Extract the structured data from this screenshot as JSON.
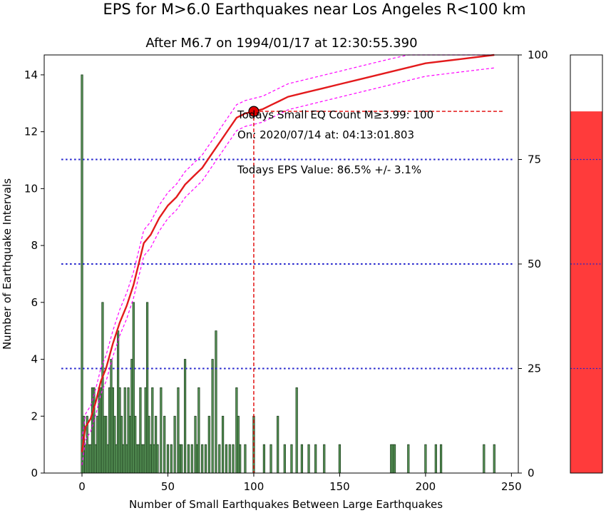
{
  "chart_data": {
    "type": "bar",
    "title": "EPS for M>6.0 Earthquakes near Los Angeles R<100 km",
    "subtitle": "After M6.7 on 1994/01/17 at 12:30:55.390",
    "xlabel": "Number of Small Earthquakes Between Large Earthquakes",
    "ylabel": "Number of Earthquake Intervals",
    "xlim": [
      -22,
      254
    ],
    "ylim": [
      0,
      14.7
    ],
    "y2lim": [
      0,
      100
    ],
    "xticks": [
      0,
      50,
      100,
      150,
      200,
      250
    ],
    "yticks": [
      0,
      2,
      4,
      6,
      8,
      10,
      12,
      14
    ],
    "y2ticks": [
      0,
      25,
      50,
      75,
      100
    ],
    "grid_levels_percent": [
      25,
      50,
      75
    ],
    "grid": false,
    "legend": "none",
    "histogram": {
      "bin_width": 1,
      "x": [
        0,
        1,
        2,
        3,
        4,
        5,
        6,
        7,
        8,
        9,
        10,
        11,
        12,
        13,
        14,
        15,
        16,
        17,
        18,
        19,
        20,
        21,
        22,
        23,
        24,
        25,
        26,
        27,
        28,
        29,
        30,
        31,
        32,
        33,
        34,
        35,
        36,
        37,
        38,
        39,
        40,
        41,
        42,
        43,
        44,
        46,
        48,
        50,
        52,
        54,
        56,
        57,
        58,
        60,
        62,
        64,
        66,
        67,
        68,
        70,
        72,
        74,
        76,
        78,
        80,
        82,
        84,
        86,
        88,
        90,
        91,
        92,
        95,
        100,
        106,
        110,
        114,
        118,
        122,
        125,
        128,
        132,
        136,
        141,
        150,
        180,
        181,
        182,
        190,
        200,
        206,
        209,
        234,
        240
      ],
      "values": [
        14,
        2,
        1,
        2,
        1,
        1,
        3,
        3,
        1,
        2,
        3,
        3,
        6,
        2,
        2,
        1,
        3,
        4,
        3,
        2,
        1,
        5,
        3,
        2,
        1,
        3,
        1,
        3,
        2,
        4,
        6,
        2,
        1,
        1,
        3,
        1,
        1,
        3,
        6,
        2,
        1,
        3,
        1,
        2,
        1,
        3,
        2,
        1,
        1,
        2,
        3,
        1,
        1,
        4,
        1,
        1,
        2,
        1,
        3,
        1,
        1,
        2,
        4,
        5,
        1,
        2,
        1,
        1,
        1,
        3,
        2,
        1,
        1,
        2,
        1,
        1,
        2,
        1,
        1,
        3,
        1,
        1,
        1,
        1,
        1,
        1,
        1,
        1,
        1,
        1,
        1,
        1,
        1,
        1
      ]
    },
    "cumulative_curve": {
      "points": [
        [
          0,
          5
        ],
        [
          2,
          11
        ],
        [
          5,
          13
        ],
        [
          8,
          17
        ],
        [
          11,
          22
        ],
        [
          14,
          25
        ],
        [
          18,
          31
        ],
        [
          22,
          36
        ],
        [
          26,
          40
        ],
        [
          30,
          45
        ],
        [
          33,
          50
        ],
        [
          36,
          55
        ],
        [
          40,
          57
        ],
        [
          45,
          61
        ],
        [
          50,
          64
        ],
        [
          55,
          66
        ],
        [
          60,
          69
        ],
        [
          65,
          71
        ],
        [
          70,
          73
        ],
        [
          75,
          76
        ],
        [
          80,
          79
        ],
        [
          85,
          82
        ],
        [
          90,
          85
        ],
        [
          95,
          86
        ],
        [
          100,
          86.5
        ],
        [
          105,
          87
        ],
        [
          110,
          88
        ],
        [
          115,
          89
        ],
        [
          120,
          90
        ],
        [
          130,
          91
        ],
        [
          140,
          92
        ],
        [
          150,
          93
        ],
        [
          160,
          94
        ],
        [
          170,
          95
        ],
        [
          180,
          96
        ],
        [
          190,
          97
        ],
        [
          200,
          98
        ],
        [
          220,
          99
        ],
        [
          240,
          100
        ]
      ],
      "uncertainty_percent": 3.1
    },
    "current": {
      "x": 100,
      "eps_percent": 86.5
    },
    "bar_fill_percent": 86.5,
    "colors": {
      "bars": "#5b9a5b",
      "bar_edge": "#1d3d1d",
      "curve": "#e31a1c",
      "band": "#ff00ff",
      "levels": "#2222cc",
      "marker": "#e00000",
      "gauge_fill": "#ff3b3b"
    },
    "annotations": {
      "line1": "Todays Small EQ Count M≥3.99:  100",
      "line2": "On:  2020/07/14   at:  04:13:01.803",
      "line3": "Todays EPS Value:  86.5% +/- 3.1%"
    }
  }
}
